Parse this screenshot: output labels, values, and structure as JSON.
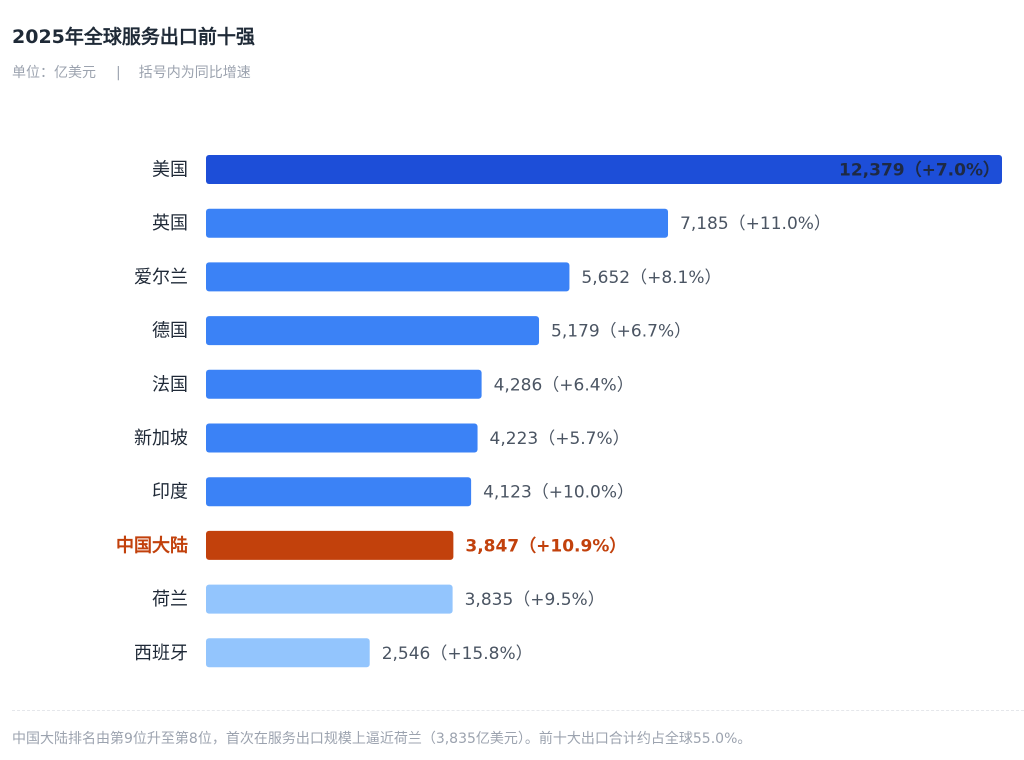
{
  "header": {
    "title": "2025年全球服务出口前十强",
    "unit": "单位：亿美元",
    "separator": "|",
    "note": "括号内为同比增速"
  },
  "chart_data": {
    "type": "bar",
    "orientation": "horizontal",
    "unit": "亿美元",
    "categories": [
      "美国",
      "英国",
      "爱尔兰",
      "德国",
      "法国",
      "新加坡",
      "印度",
      "中国大陆",
      "荷兰",
      "西班牙"
    ],
    "values": [
      12379,
      7185,
      5652,
      5179,
      4286,
      4223,
      4123,
      3847,
      3835,
      2546
    ],
    "growth": [
      "+7.0%",
      "+11.0%",
      "+8.1%",
      "+6.7%",
      "+6.4%",
      "+5.7%",
      "+10.0%",
      "+10.9%",
      "+9.5%",
      "+15.8%"
    ],
    "value_labels": [
      "12,379（+7.0%）",
      "7,185（+11.0%）",
      "5,652（+8.1%）",
      "5,179（+6.7%）",
      "4,286（+6.4%）",
      "4,223（+5.7%）",
      "4,123（+10.0%）",
      "3,847（+10.9%）",
      "3,835（+9.5%）",
      "2,546（+15.8%）"
    ],
    "colors": [
      "#1d4ed8",
      "#3b82f6",
      "#3b82f6",
      "#3b82f6",
      "#3b82f6",
      "#3b82f6",
      "#3b82f6",
      "#c2410c",
      "#93c5fd",
      "#93c5fd"
    ],
    "highlight": "中国大陆",
    "highlight_color": "#c2410c",
    "xlim": [
      0,
      12379
    ],
    "grid": false,
    "legend": "none"
  },
  "footer": {
    "note": "中国大陆排名由第9位升至第8位，首次在服务出口规模上逼近荷兰（3,835亿美元）。前十大出口合计约占全球55.0%。"
  }
}
